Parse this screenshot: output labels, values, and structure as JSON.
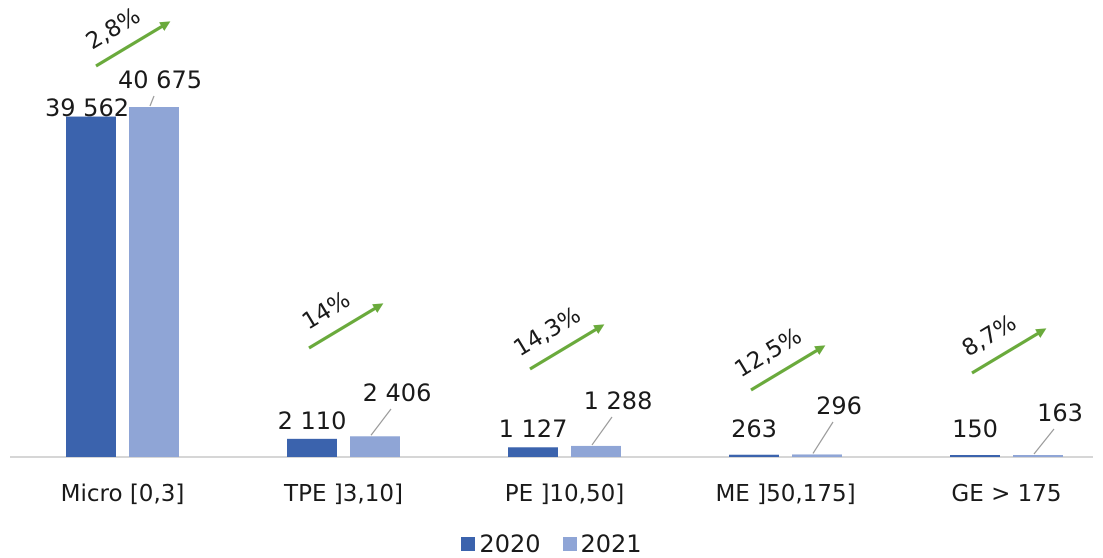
{
  "chart_data": {
    "type": "bar",
    "categories": [
      "Micro [0,3]",
      "TPE ]3,10]",
      "PE ]10,50]",
      "ME ]50,175]",
      "GE > 175"
    ],
    "series": [
      {
        "name": "2020",
        "color": "#3b63ad",
        "values": [
          39562,
          2110,
          1127,
          263,
          150
        ],
        "labels": [
          "39 562",
          "2 110",
          "1 127",
          "263",
          "150"
        ]
      },
      {
        "name": "2021",
        "color": "#8fa5d6",
        "values": [
          40675,
          2406,
          1288,
          296,
          163
        ],
        "labels": [
          "40 675",
          "2 406",
          "1 288",
          "296",
          "163"
        ]
      }
    ],
    "growth_labels": [
      "2,8%",
      "14%",
      "14,3%",
      "12,5%",
      "8,7%"
    ],
    "growth_arrow_color": "#6aaa3c",
    "ylim": [
      0,
      43000
    ],
    "title": "",
    "xlabel": "",
    "ylabel": "",
    "legend_position": "bottom-center"
  }
}
